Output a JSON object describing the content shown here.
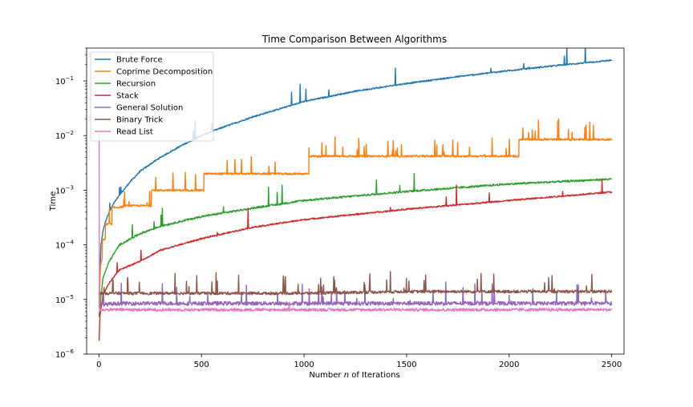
{
  "chart_data": {
    "type": "line",
    "title": "Time Comparison Between Algorithms",
    "xlabel": "Number $n$ of Iterations",
    "xlabel_parts": {
      "before": "Number ",
      "italic": "n",
      "after": " of Iterations"
    },
    "ylabel": "Time",
    "xlim": [
      -60,
      2560
    ],
    "ylim": [
      1e-06,
      0.4
    ],
    "yscale": "log",
    "grid": false,
    "legend_position": "top-left",
    "x_ticks": [
      {
        "value": 0,
        "label": "0"
      },
      {
        "value": 500,
        "label": "500"
      },
      {
        "value": 1000,
        "label": "1000"
      },
      {
        "value": 1500,
        "label": "1500"
      },
      {
        "value": 2000,
        "label": "2000"
      },
      {
        "value": 2500,
        "label": "2500"
      }
    ],
    "y_ticks": [
      {
        "value": 1e-06,
        "base": "10",
        "exp": "−6"
      },
      {
        "value": 1e-05,
        "base": "10",
        "exp": "−5"
      },
      {
        "value": 0.0001,
        "base": "10",
        "exp": "−4"
      },
      {
        "value": 0.001,
        "base": "10",
        "exp": "−3"
      },
      {
        "value": 0.01,
        "base": "10",
        "exp": "−2"
      },
      {
        "value": 0.1,
        "base": "10",
        "exp": "−1"
      }
    ],
    "series": [
      {
        "name": "Brute Force",
        "color": "#1f77b4",
        "x": [
          1,
          10,
          20,
          30,
          50,
          75,
          100,
          150,
          200,
          250,
          300,
          400,
          500,
          600,
          750,
          1000,
          1250,
          1500,
          1750,
          2000,
          2250,
          2500
        ],
        "y": [
          1e-05,
          0.0001,
          0.00018,
          0.00025,
          0.0004,
          0.0006,
          0.0008,
          0.0014,
          0.0022,
          0.003,
          0.004,
          0.0065,
          0.01,
          0.014,
          0.022,
          0.042,
          0.065,
          0.09,
          0.12,
          0.155,
          0.195,
          0.24
        ]
      },
      {
        "name": "Coprime Decomposition",
        "color": "#ff7f0e",
        "x": [
          1,
          5,
          8,
          16,
          17,
          31,
          32,
          63,
          64,
          127,
          128,
          255,
          256,
          511,
          512,
          1023,
          1024,
          2047,
          2048,
          2500
        ],
        "y": [
          7e-06,
          2e-05,
          4e-05,
          6e-05,
          0.00012,
          0.00013,
          0.00024,
          0.00024,
          0.00048,
          0.0005,
          0.00052,
          0.00052,
          0.001,
          0.001,
          0.002,
          0.002,
          0.0042,
          0.0042,
          0.0085,
          0.0085
        ]
      },
      {
        "name": "Recursion",
        "color": "#2ca02c",
        "x": [
          1,
          10,
          20,
          50,
          100,
          200,
          300,
          500,
          750,
          1000,
          1500,
          2000,
          2500
        ],
        "y": [
          5e-06,
          1.2e-05,
          2.5e-05,
          5e-05,
          0.0001,
          0.00016,
          0.00022,
          0.00033,
          0.00047,
          0.00065,
          0.00095,
          0.0013,
          0.0016
        ]
      },
      {
        "name": "Stack",
        "color": "#d62728",
        "x": [
          1,
          5,
          20,
          50,
          100,
          200,
          300,
          500,
          750,
          1000,
          1500,
          2000,
          2500
        ],
        "y": [
          1.8e-06,
          5e-06,
          1.2e-05,
          2e-05,
          3.5e-05,
          5e-05,
          8e-05,
          0.00013,
          0.00021,
          0.00029,
          0.00045,
          0.00065,
          0.00093
        ]
      },
      {
        "name": "General Solution",
        "color": "#9467bd",
        "x": [
          1,
          100,
          500,
          1000,
          1500,
          2000,
          2500
        ],
        "y": [
          8e-06,
          8.5e-06,
          8.5e-06,
          8.5e-06,
          8.5e-06,
          8.5e-06,
          8.5e-06
        ]
      },
      {
        "name": "Binary Trick",
        "color": "#8c564b",
        "x": [
          1,
          100,
          500,
          1000,
          1500,
          2000,
          2500
        ],
        "y": [
          1.3e-05,
          1.3e-05,
          1.3e-05,
          1.3e-05,
          1.4e-05,
          1.4e-05,
          1.4e-05
        ]
      },
      {
        "name": "Read List",
        "color": "#e377c2",
        "x": [
          1,
          2,
          3,
          5,
          10,
          100,
          500,
          1000,
          1500,
          2000,
          2500
        ],
        "y": [
          0.01,
          1e-05,
          6.5e-06,
          6.5e-06,
          6.5e-06,
          6.5e-06,
          6.5e-06,
          6.5e-06,
          6.5e-06,
          6.5e-06,
          6.5e-06
        ]
      }
    ]
  }
}
